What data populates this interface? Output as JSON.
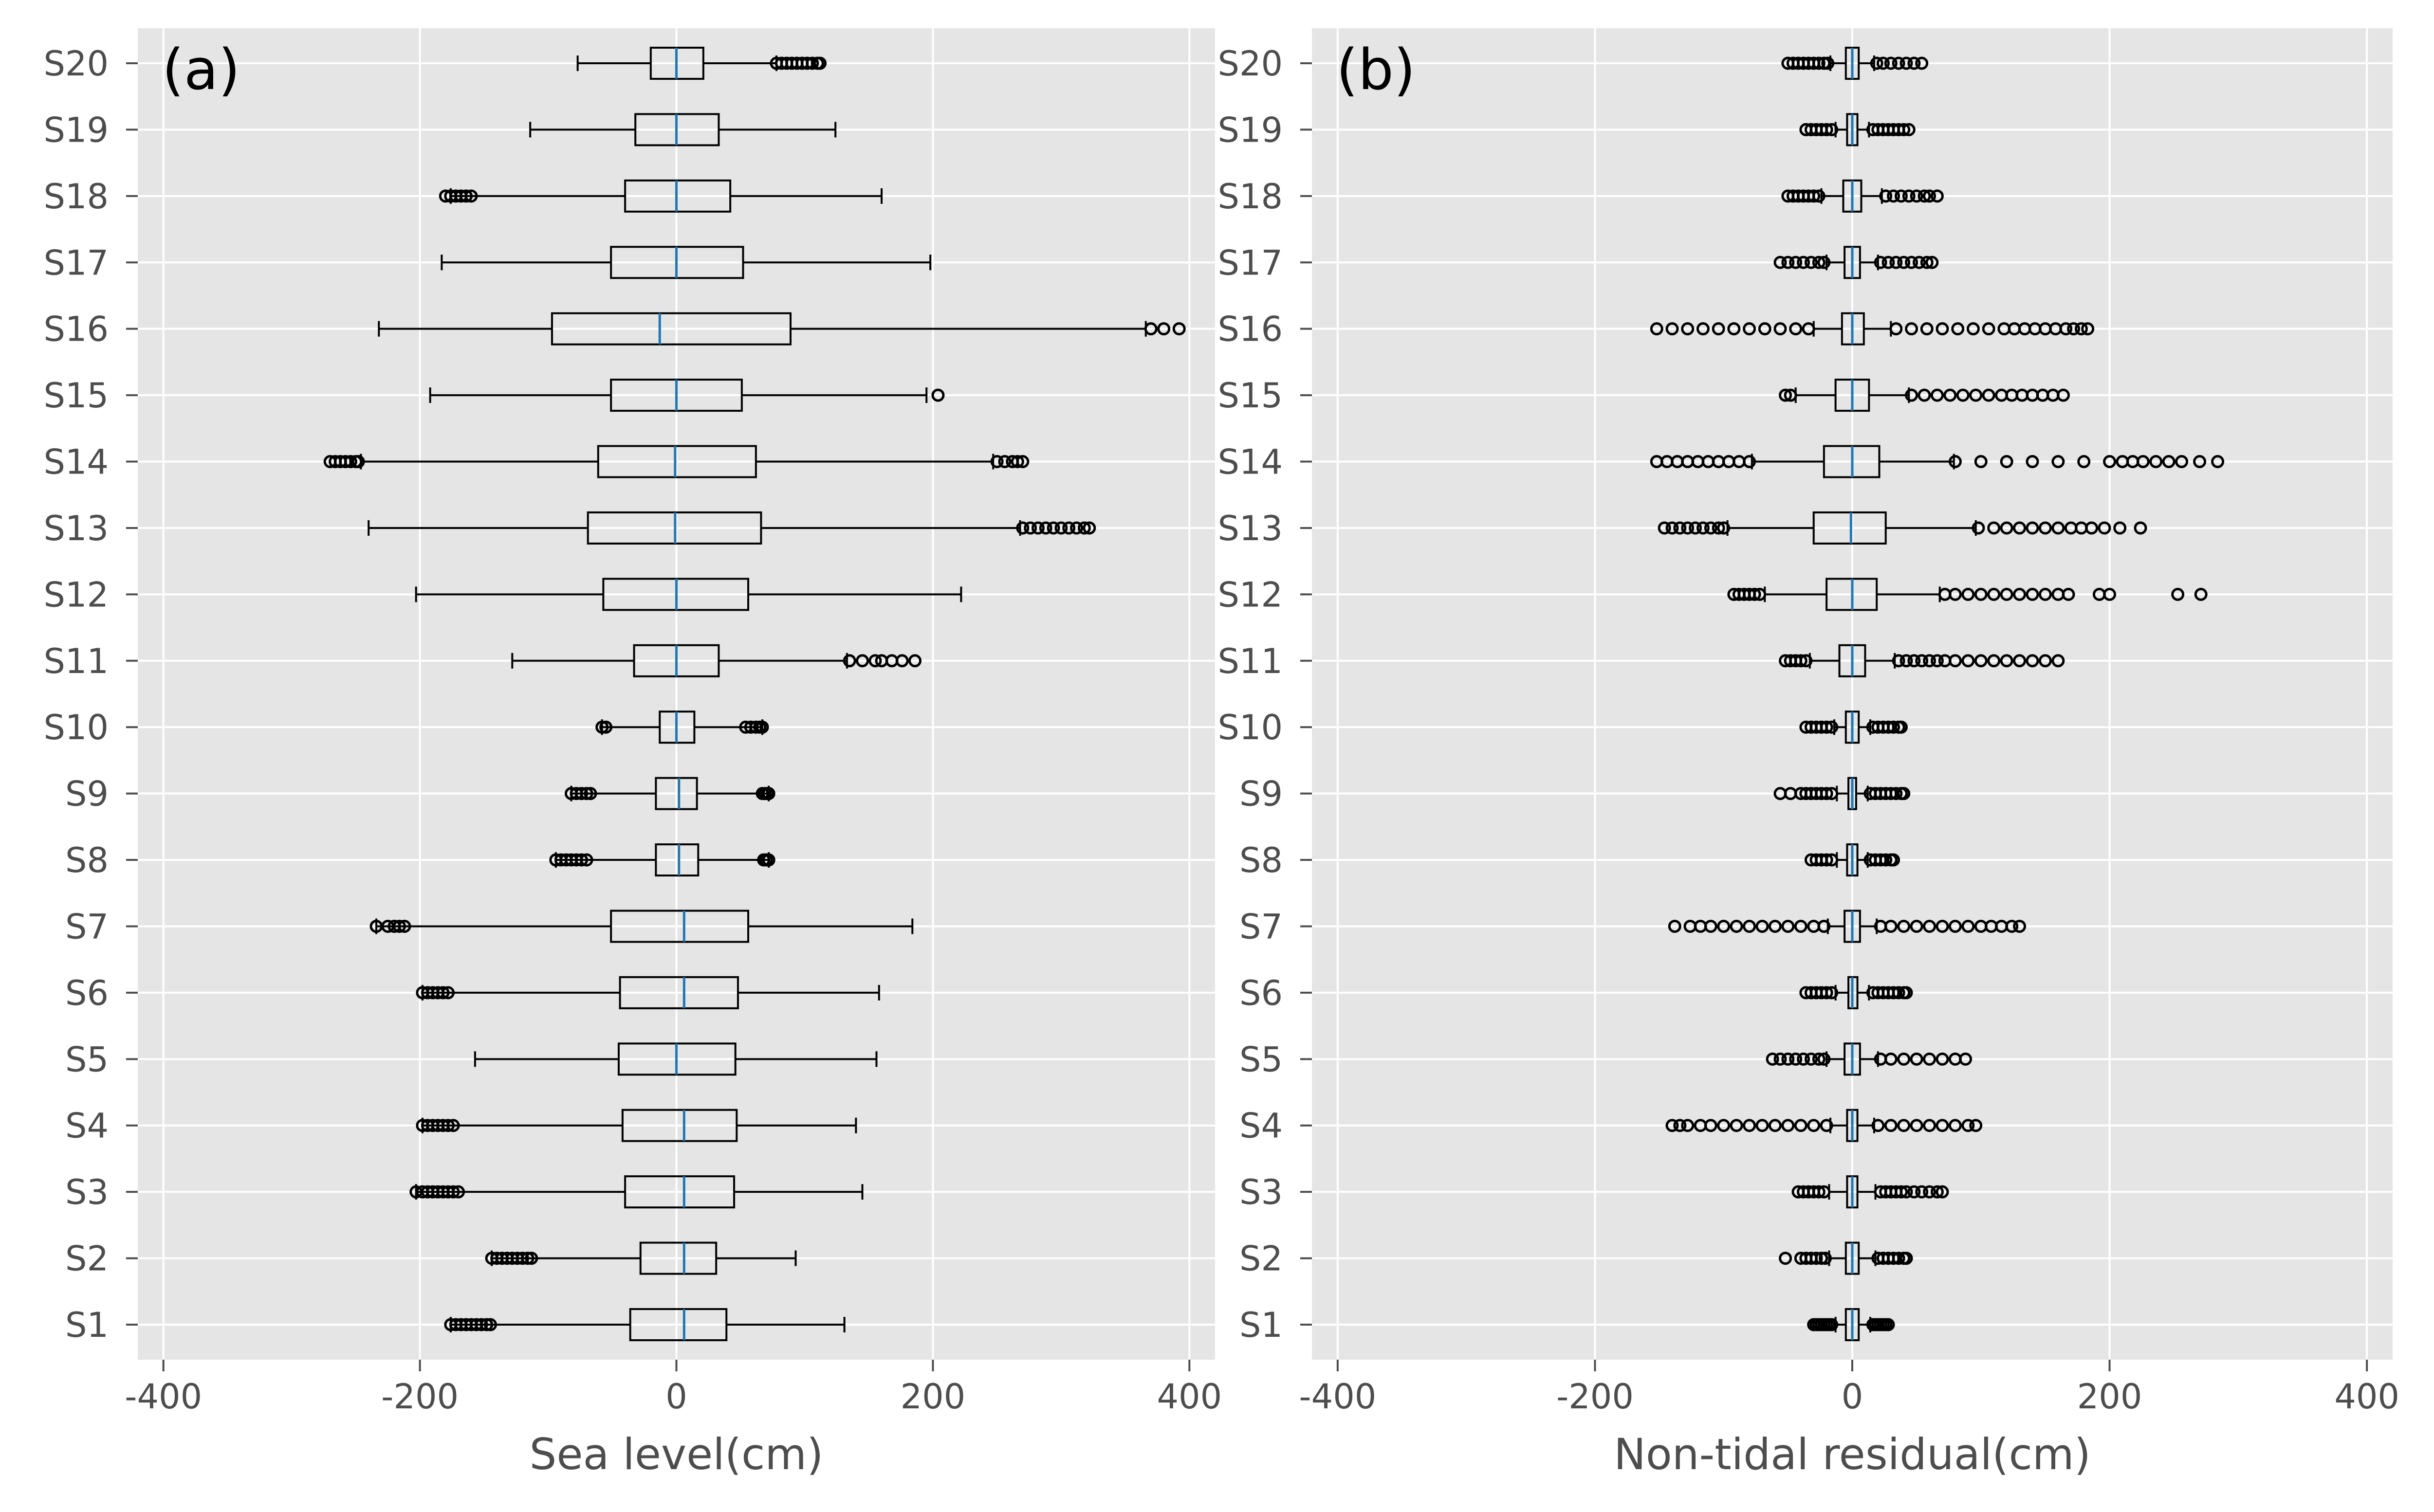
{
  "chart_data": [
    {
      "type": "box",
      "orientation": "horizontal",
      "panel_label": "(a)",
      "xlabel": "Sea level(cm)",
      "xlim": [
        -420,
        420
      ],
      "xticks": [
        -400,
        -200,
        0,
        200,
        400
      ],
      "xtick_labels": [
        "-400",
        "-200",
        "0",
        "200",
        "400"
      ],
      "grid": true,
      "categories": [
        "S1",
        "S2",
        "S3",
        "S4",
        "S5",
        "S6",
        "S7",
        "S8",
        "S9",
        "S10",
        "S11",
        "S12",
        "S13",
        "S14",
        "S15",
        "S16",
        "S17",
        "S18",
        "S19",
        "S20"
      ],
      "boxes": [
        {
          "whislo": -176,
          "q1": -36,
          "med": 6,
          "q3": 39,
          "whishi": 131,
          "fliers_low": [
            -176,
            -172,
            -168,
            -164,
            -160,
            -156,
            -152,
            -148,
            -145
          ],
          "fliers_high": []
        },
        {
          "whislo": -144,
          "q1": -28,
          "med": 6,
          "q3": 31,
          "whishi": 93,
          "fliers_low": [
            -144,
            -140,
            -136,
            -132,
            -128,
            -124,
            -120,
            -116,
            -113
          ],
          "fliers_high": []
        },
        {
          "whislo": -203,
          "q1": -40,
          "med": 6,
          "q3": 45,
          "whishi": 145,
          "fliers_low": [
            -203,
            -198,
            -194,
            -190,
            -186,
            -182,
            -178,
            -174,
            -170
          ],
          "fliers_high": []
        },
        {
          "whislo": -198,
          "q1": -42,
          "med": 6,
          "q3": 47,
          "whishi": 140,
          "fliers_low": [
            -198,
            -194,
            -190,
            -186,
            -182,
            -178,
            -174
          ],
          "fliers_high": []
        },
        {
          "whislo": -157,
          "q1": -45,
          "med": 0,
          "q3": 46,
          "whishi": 156,
          "fliers_low": [],
          "fliers_high": []
        },
        {
          "whislo": -198,
          "q1": -44,
          "med": 6,
          "q3": 48,
          "whishi": 158,
          "fliers_low": [
            -198,
            -194,
            -190,
            -186,
            -182,
            -178
          ],
          "fliers_high": []
        },
        {
          "whislo": -234,
          "q1": -51,
          "med": 6,
          "q3": 56,
          "whishi": 184,
          "fliers_low": [
            -234,
            -225,
            -220,
            -216,
            -212
          ],
          "fliers_high": []
        },
        {
          "whislo": -94,
          "q1": -16,
          "med": 2,
          "q3": 17,
          "whishi": 72,
          "fliers_low": [
            -94,
            -90,
            -86,
            -82,
            -78,
            -74,
            -70
          ],
          "fliers_high": [
            68,
            70,
            72
          ]
        },
        {
          "whislo": -82,
          "q1": -16,
          "med": 2,
          "q3": 16,
          "whishi": 72,
          "fliers_low": [
            -82,
            -78,
            -74,
            -70,
            -67
          ],
          "fliers_high": [
            67,
            69,
            71,
            72
          ]
        },
        {
          "whislo": -58,
          "q1": -13,
          "med": 0,
          "q3": 14,
          "whishi": 67,
          "fliers_low": [
            -58,
            -55
          ],
          "fliers_high": [
            54,
            58,
            62,
            65,
            67
          ]
        },
        {
          "whislo": -128,
          "q1": -33,
          "med": 0,
          "q3": 33,
          "whishi": 133,
          "fliers_low": [],
          "fliers_high": [
            135,
            145,
            155,
            160,
            168,
            176,
            186
          ]
        },
        {
          "whislo": -203,
          "q1": -57,
          "med": 0,
          "q3": 56,
          "whishi": 222,
          "fliers_low": [],
          "fliers_high": []
        },
        {
          "whislo": -240,
          "q1": -69,
          "med": -1,
          "q3": 66,
          "whishi": 268,
          "fliers_low": [],
          "fliers_high": [
            270,
            276,
            282,
            288,
            294,
            300,
            306,
            312,
            318,
            322
          ]
        },
        {
          "whislo": -246,
          "q1": -61,
          "med": -1,
          "q3": 62,
          "whishi": 247,
          "fliers_low": [
            -270,
            -266,
            -262,
            -258,
            -254,
            -250,
            -248
          ],
          "fliers_high": [
            250,
            256,
            262,
            266,
            270
          ]
        },
        {
          "whislo": -192,
          "q1": -51,
          "med": 0,
          "q3": 51,
          "whishi": 195,
          "fliers_low": [],
          "fliers_high": [
            204
          ]
        },
        {
          "whislo": -232,
          "q1": -97,
          "med": -13,
          "q3": 89,
          "whishi": 366,
          "fliers_low": [],
          "fliers_high": [
            370,
            380,
            392
          ]
        },
        {
          "whislo": -183,
          "q1": -51,
          "med": 0,
          "q3": 52,
          "whishi": 198,
          "fliers_low": [],
          "fliers_high": []
        },
        {
          "whislo": -176,
          "q1": -40,
          "med": 0,
          "q3": 42,
          "whishi": 160,
          "fliers_low": [
            -180,
            -176,
            -172,
            -168,
            -164,
            -160
          ],
          "fliers_high": []
        },
        {
          "whislo": -114,
          "q1": -32,
          "med": 0,
          "q3": 33,
          "whishi": 124,
          "fliers_low": [],
          "fliers_high": []
        },
        {
          "whislo": -77,
          "q1": -20,
          "med": 0,
          "q3": 21,
          "whishi": 78,
          "fliers_low": [],
          "fliers_high": [
            78,
            82,
            86,
            90,
            94,
            98,
            102,
            106,
            110,
            112
          ]
        }
      ]
    },
    {
      "type": "box",
      "orientation": "horizontal",
      "panel_label": "(b)",
      "xlabel": "Non-tidal residual(cm)",
      "xlim": [
        -420,
        420
      ],
      "xticks": [
        -400,
        -200,
        0,
        200,
        400
      ],
      "xtick_labels": [
        "-400",
        "-200",
        "0",
        "200",
        "400"
      ],
      "grid": true,
      "categories": [
        "S1",
        "S2",
        "S3",
        "S4",
        "S5",
        "S6",
        "S7",
        "S8",
        "S9",
        "S10",
        "S11",
        "S12",
        "S13",
        "S14",
        "S15",
        "S16",
        "S17",
        "S18",
        "S19",
        "S20"
      ],
      "boxes": [
        {
          "whislo": -13,
          "q1": -5,
          "med": 0,
          "q3": 5,
          "whishi": 14,
          "fliers_low": [
            -30,
            -28,
            -26,
            -24,
            -22,
            -20,
            -18,
            -16
          ],
          "fliers_high": [
            16,
            18,
            20,
            22,
            24,
            26,
            28
          ]
        },
        {
          "whislo": -18,
          "q1": -5,
          "med": 0,
          "q3": 5,
          "whishi": 18,
          "fliers_low": [
            -52,
            -40,
            -36,
            -32,
            -28,
            -24,
            -21
          ],
          "fliers_high": [
            20,
            24,
            28,
            32,
            36,
            40,
            42
          ]
        },
        {
          "whislo": -18,
          "q1": -4,
          "med": 0,
          "q3": 4,
          "whishi": 18,
          "fliers_low": [
            -42,
            -38,
            -34,
            -30,
            -26,
            -22
          ],
          "fliers_high": [
            22,
            26,
            30,
            34,
            38,
            42,
            48,
            54,
            60,
            66,
            70
          ]
        },
        {
          "whislo": -17,
          "q1": -4,
          "med": 0,
          "q3": 4,
          "whishi": 17,
          "fliers_low": [
            -140,
            -134,
            -128,
            -118,
            -110,
            -100,
            -90,
            -80,
            -70,
            -60,
            -50,
            -40,
            -30,
            -20
          ],
          "fliers_high": [
            20,
            30,
            40,
            50,
            60,
            70,
            80,
            90,
            96
          ]
        },
        {
          "whislo": -20,
          "q1": -6,
          "med": 0,
          "q3": 6,
          "whishi": 20,
          "fliers_low": [
            -62,
            -56,
            -50,
            -44,
            -38,
            -32,
            -26,
            -22
          ],
          "fliers_high": [
            22,
            30,
            40,
            50,
            60,
            70,
            80,
            88
          ]
        },
        {
          "whislo": -13,
          "q1": -3,
          "med": 0,
          "q3": 4,
          "whishi": 13,
          "fliers_low": [
            -36,
            -32,
            -28,
            -24,
            -20,
            -16
          ],
          "fliers_high": [
            16,
            20,
            24,
            28,
            32,
            36,
            40,
            42
          ]
        },
        {
          "whislo": -19,
          "q1": -6,
          "med": 0,
          "q3": 6,
          "whishi": 19,
          "fliers_low": [
            -138,
            -126,
            -118,
            -110,
            -100,
            -90,
            -80,
            -70,
            -60,
            -50,
            -40,
            -30,
            -22
          ],
          "fliers_high": [
            22,
            30,
            40,
            50,
            60,
            70,
            80,
            90,
            100,
            108,
            116,
            124,
            130
          ]
        },
        {
          "whislo": -12,
          "q1": -4,
          "med": 0,
          "q3": 4,
          "whishi": 12,
          "fliers_low": [
            -32,
            -28,
            -24,
            -20,
            -16
          ],
          "fliers_high": [
            14,
            18,
            22,
            26,
            30,
            32
          ]
        },
        {
          "whislo": -12,
          "q1": -3,
          "med": 0,
          "q3": 3,
          "whishi": 12,
          "fliers_low": [
            -56,
            -48,
            -40,
            -36,
            -32,
            -28,
            -24,
            -20,
            -16
          ],
          "fliers_high": [
            14,
            18,
            22,
            26,
            30,
            34,
            38,
            40
          ]
        },
        {
          "whislo": -14,
          "q1": -5,
          "med": 0,
          "q3": 5,
          "whishi": 14,
          "fliers_low": [
            -36,
            -32,
            -28,
            -24,
            -20,
            -16
          ],
          "fliers_high": [
            16,
            20,
            24,
            28,
            32,
            36,
            38
          ]
        },
        {
          "whislo": -33,
          "q1": -10,
          "med": 0,
          "q3": 10,
          "whishi": 33,
          "fliers_low": [
            -52,
            -48,
            -44,
            -40,
            -36
          ],
          "fliers_high": [
            36,
            42,
            48,
            54,
            60,
            66,
            72,
            80,
            90,
            100,
            110,
            120,
            130,
            140,
            150,
            160
          ]
        },
        {
          "whislo": -68,
          "q1": -20,
          "med": 0,
          "q3": 19,
          "whishi": 68,
          "fliers_low": [
            -92,
            -88,
            -84,
            -80,
            -76,
            -72
          ],
          "fliers_high": [
            72,
            80,
            90,
            100,
            110,
            120,
            130,
            140,
            150,
            160,
            168,
            192,
            200,
            253,
            271
          ]
        },
        {
          "whislo": -97,
          "q1": -30,
          "med": -1,
          "q3": 26,
          "whishi": 96,
          "fliers_low": [
            -146,
            -140,
            -134,
            -128,
            -122,
            -116,
            -110,
            -104,
            -100
          ],
          "fliers_high": [
            98,
            110,
            120,
            130,
            140,
            150,
            160,
            170,
            178,
            186,
            196,
            208,
            224
          ]
        },
        {
          "whislo": -78,
          "q1": -22,
          "med": 0,
          "q3": 21,
          "whishi": 79,
          "fliers_low": [
            -152,
            -144,
            -136,
            -128,
            -120,
            -112,
            -104,
            -96,
            -88,
            -80
          ],
          "fliers_high": [
            80,
            100,
            120,
            140,
            160,
            180,
            200,
            210,
            218,
            226,
            236,
            246,
            256,
            270,
            284
          ]
        },
        {
          "whislo": -44,
          "q1": -13,
          "med": 0,
          "q3": 13,
          "whishi": 44,
          "fliers_low": [
            -52,
            -48
          ],
          "fliers_high": [
            46,
            56,
            66,
            76,
            86,
            96,
            106,
            116,
            124,
            132,
            140,
            148,
            156,
            164
          ]
        },
        {
          "whislo": -30,
          "q1": -8,
          "med": 0,
          "q3": 9,
          "whishi": 30,
          "fliers_low": [
            -152,
            -140,
            -128,
            -116,
            -104,
            -92,
            -80,
            -68,
            -56,
            -44,
            -34
          ],
          "fliers_high": [
            34,
            46,
            58,
            70,
            82,
            94,
            106,
            118,
            126,
            134,
            142,
            150,
            158,
            166,
            172,
            178,
            183
          ]
        },
        {
          "whislo": -20,
          "q1": -6,
          "med": 0,
          "q3": 6,
          "whishi": 20,
          "fliers_low": [
            -56,
            -50,
            -44,
            -38,
            -32,
            -26,
            -22
          ],
          "fliers_high": [
            22,
            28,
            34,
            40,
            46,
            52,
            58,
            62
          ]
        },
        {
          "whislo": -24,
          "q1": -7,
          "med": 0,
          "q3": 7,
          "whishi": 23,
          "fliers_low": [
            -50,
            -46,
            -42,
            -38,
            -34,
            -30,
            -26
          ],
          "fliers_high": [
            26,
            32,
            38,
            44,
            50,
            56,
            60,
            66
          ]
        },
        {
          "whislo": -13,
          "q1": -4,
          "med": 0,
          "q3": 4,
          "whishi": 13,
          "fliers_low": [
            -36,
            -32,
            -28,
            -24,
            -20,
            -16
          ],
          "fliers_high": [
            16,
            20,
            24,
            28,
            32,
            36,
            40,
            44
          ]
        },
        {
          "whislo": -17,
          "q1": -5,
          "med": 0,
          "q3": 5,
          "whishi": 17,
          "fliers_low": [
            -50,
            -46,
            -42,
            -38,
            -34,
            -30,
            -26,
            -22,
            -19
          ],
          "fliers_high": [
            19,
            24,
            30,
            36,
            42,
            48,
            54
          ]
        }
      ]
    }
  ],
  "colors": {
    "panel_background": "#e5e5e5",
    "grid": "#ffffff",
    "box_edge": "#000000",
    "median": "#1f77b4",
    "tick_label": "#4d4d4d",
    "axis_label": "#4d4d4d",
    "panel_label": "#000000"
  }
}
